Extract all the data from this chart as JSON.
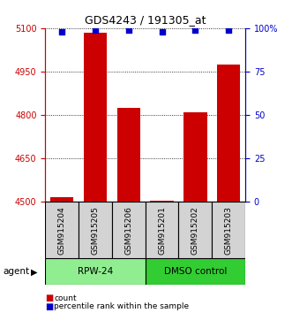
{
  "title": "GDS4243 / 191305_at",
  "samples": [
    "GSM915204",
    "GSM915205",
    "GSM915206",
    "GSM915201",
    "GSM915202",
    "GSM915203"
  ],
  "groups": [
    {
      "label": "RPW-24",
      "indices": [
        0,
        1,
        2
      ],
      "color": "#90EE90"
    },
    {
      "label": "DMSO control",
      "indices": [
        3,
        4,
        5
      ],
      "color": "#32CD32"
    }
  ],
  "count_values": [
    4515,
    5085,
    4825,
    4503,
    4810,
    4975
  ],
  "percentile_values": [
    98,
    99,
    99,
    98,
    99,
    99
  ],
  "ylim_left": [
    4500,
    5100
  ],
  "ylim_right": [
    0,
    100
  ],
  "yticks_left": [
    4500,
    4650,
    4800,
    4950,
    5100
  ],
  "yticks_right": [
    0,
    25,
    50,
    75,
    100
  ],
  "bar_color": "#CC0000",
  "dot_color": "#0000CC",
  "left_axis_color": "#CC0000",
  "right_axis_color": "#0000CC",
  "group_label": "agent",
  "legend_count": "count",
  "legend_percentile": "percentile rank within the sample",
  "bar_width": 0.7,
  "label_fontsize": 6.5,
  "group_fontsize": 7.5,
  "title_fontsize": 9
}
